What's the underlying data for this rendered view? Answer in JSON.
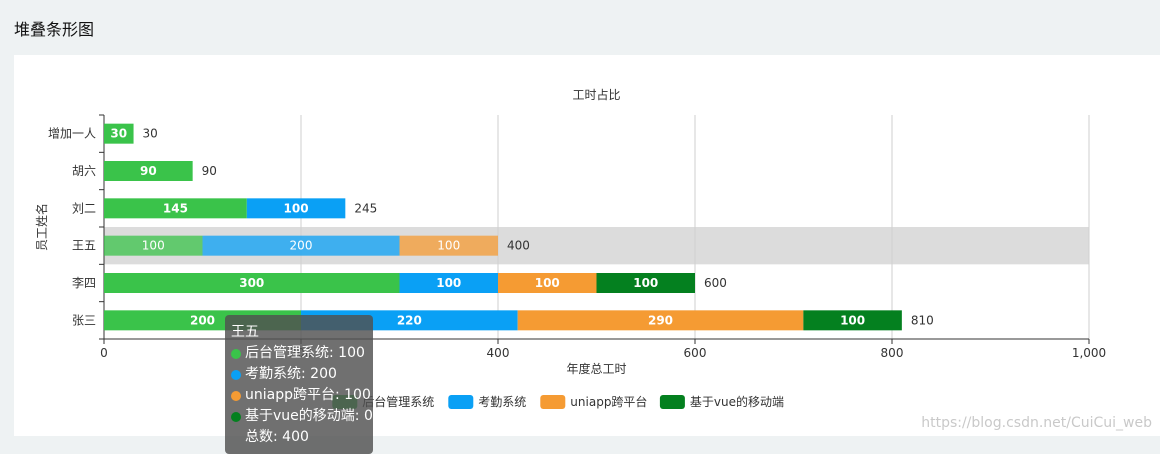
{
  "page": {
    "title": "堆叠条形图"
  },
  "chart_data": {
    "type": "bar",
    "orientation": "horizontal",
    "stacked": true,
    "title": "工时占比",
    "xlabel": "年度总工时",
    "ylabel": "员工姓名",
    "xlim": [
      0,
      1000
    ],
    "xticks": [
      "0",
      "200",
      "400",
      "600",
      "800",
      "1,000"
    ],
    "xtick_values": [
      0,
      200,
      400,
      600,
      800,
      1000
    ],
    "grid": true,
    "legend_position": "bottom-center",
    "categories": [
      "增加一人",
      "胡六",
      "刘二",
      "王五",
      "李四",
      "张三"
    ],
    "series": [
      {
        "name": "后台管理系统",
        "color": "#3ac34a",
        "values": [
          30,
          90,
          145,
          100,
          300,
          200
        ]
      },
      {
        "name": "考勤系统",
        "color": "#0aa0f5",
        "values": [
          0,
          0,
          100,
          200,
          100,
          220
        ]
      },
      {
        "name": "uniapp跨平台",
        "color": "#f59b33",
        "values": [
          0,
          0,
          0,
          100,
          100,
          290
        ]
      },
      {
        "name": "基于vue的移动端",
        "color": "#04801f",
        "values": [
          0,
          0,
          0,
          0,
          100,
          100
        ]
      }
    ],
    "totals": [
      "30",
      "90",
      "245",
      "400",
      "600",
      "810"
    ],
    "highlighted_category": "王五"
  },
  "tooltip": {
    "title": "王五",
    "rows": [
      {
        "text": "后台管理系统: 100",
        "color": "#3ac34a"
      },
      {
        "text": "考勤系统: 200",
        "color": "#0aa0f5"
      },
      {
        "text": "uniapp跨平台: 100",
        "color": "#f59b33"
      },
      {
        "text": "基于vue的移动端: 0",
        "color": "#04801f"
      }
    ],
    "total": "总数: 400"
  },
  "watermark": "https://blog.csdn.net/CuiCui_web"
}
